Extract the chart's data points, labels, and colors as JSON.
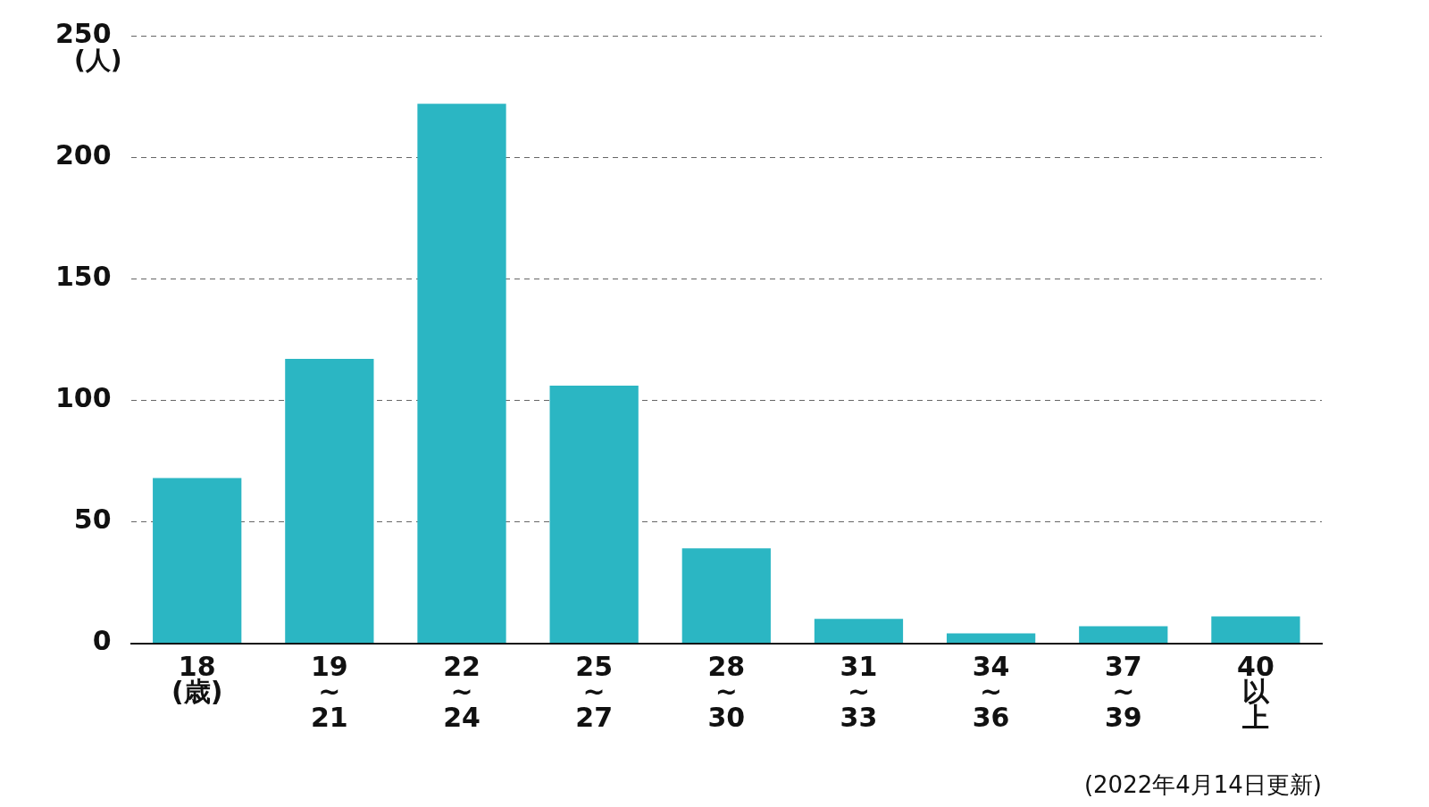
{
  "chart_data": {
    "type": "bar",
    "ylabel": "(人)",
    "categories": [
      "18\n(歳)",
      "19\n~\n21",
      "22\n~\n24",
      "25\n~\n27",
      "28\n~\n30",
      "31\n~\n33",
      "34\n~\n36",
      "37\n~\n39",
      "40\n以上"
    ],
    "values": [
      68,
      117,
      222,
      106,
      39,
      10,
      4,
      7,
      11
    ],
    "color": "#2bb6c3",
    "ylim": [
      0,
      250
    ],
    "yticks": [
      0,
      50,
      100,
      150,
      200,
      250
    ],
    "grid": "y",
    "legend": false,
    "annotations": [
      "(2022年4月14日更新)"
    ]
  }
}
